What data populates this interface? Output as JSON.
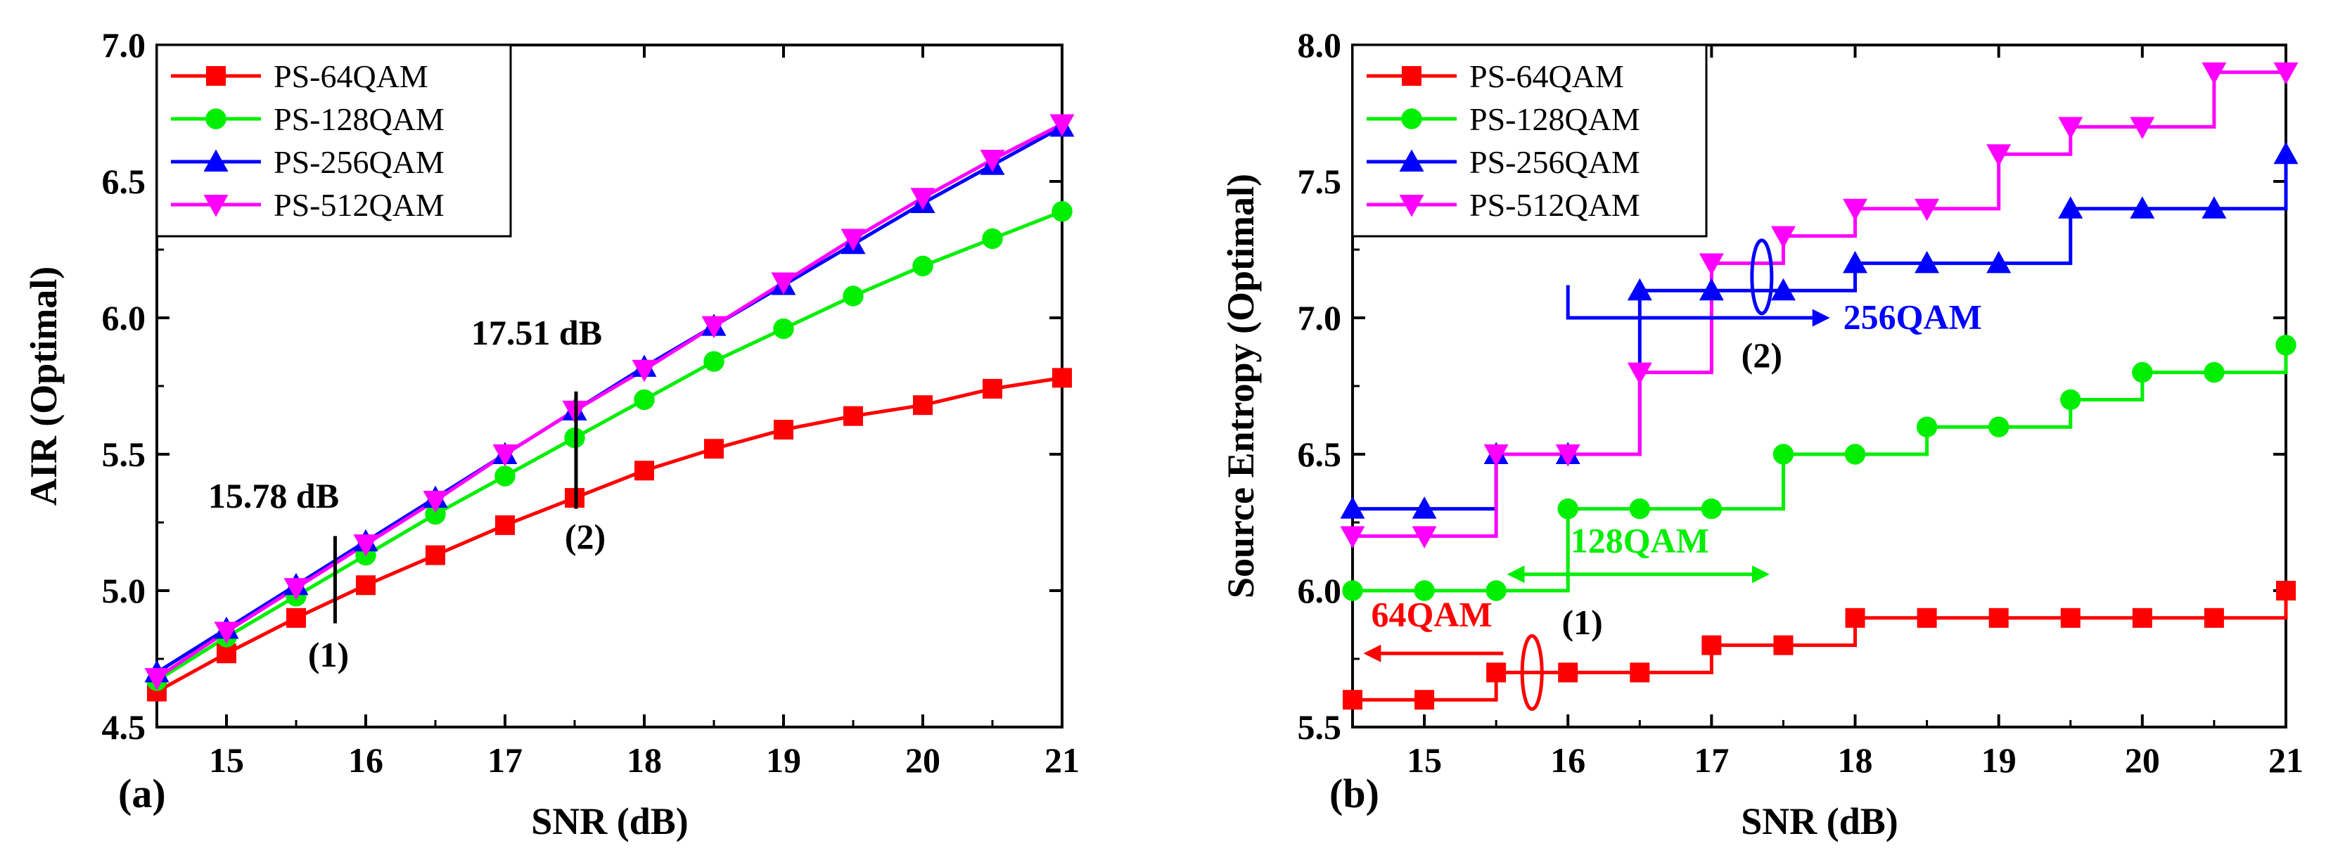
{
  "figure": {
    "colors": {
      "PS-64QAM": "#ff0000",
      "PS-128QAM": "#00ee00",
      "PS-256QAM": "#0000ff",
      "PS-512QAM": "#ff00ff",
      "axis": "#000000"
    }
  },
  "chart_data": [
    {
      "type": "line",
      "panel_label": "(a)",
      "xlabel": "SNR (dB)",
      "ylabel": "AIR (Optimal)",
      "xlim": [
        14.5,
        21
      ],
      "ylim": [
        4.5,
        7.0
      ],
      "xticks": [
        "15",
        "16",
        "17",
        "18",
        "19",
        "20",
        "21"
      ],
      "yticks": [
        "4.5",
        "5.0",
        "5.5",
        "6.0",
        "6.5",
        "7.0"
      ],
      "legend_position": "top-left",
      "x": [
        14.5,
        15,
        15.5,
        16,
        16.5,
        17,
        17.5,
        18,
        18.5,
        19,
        19.5,
        20,
        20.5,
        21
      ],
      "series": [
        {
          "name": "PS-64QAM",
          "marker": "square",
          "values": [
            4.63,
            4.77,
            4.9,
            5.02,
            5.13,
            5.24,
            5.34,
            5.44,
            5.52,
            5.59,
            5.64,
            5.68,
            5.74,
            5.78
          ]
        },
        {
          "name": "PS-128QAM",
          "marker": "circle",
          "values": [
            4.67,
            4.83,
            4.98,
            5.13,
            5.28,
            5.42,
            5.56,
            5.7,
            5.84,
            5.96,
            6.08,
            6.19,
            6.29,
            6.39
          ]
        },
        {
          "name": "PS-256QAM",
          "marker": "triangle-up",
          "values": [
            4.7,
            4.86,
            5.02,
            5.18,
            5.34,
            5.5,
            5.66,
            5.82,
            5.97,
            6.12,
            6.27,
            6.42,
            6.56,
            6.7
          ]
        },
        {
          "name": "PS-512QAM",
          "marker": "triangle-down",
          "values": [
            4.68,
            4.85,
            5.01,
            5.17,
            5.33,
            5.5,
            5.66,
            5.81,
            5.97,
            6.13,
            6.29,
            6.44,
            6.58,
            6.71
          ]
        }
      ],
      "annotations": {
        "a1_value": "15.78 dB",
        "a1_tag": "(1)",
        "a1_x": 15.78,
        "a1_range": [
          4.88,
          5.2
        ],
        "a2_value": "17.51 dB",
        "a2_tag": "(2)",
        "a2_x": 17.51,
        "a2_range": [
          5.3,
          5.73
        ]
      }
    },
    {
      "type": "line",
      "panel_label": "(b)",
      "xlabel": "SNR (dB)",
      "ylabel": "Source Entropy (Optimal)",
      "xlim": [
        14.5,
        21
      ],
      "ylim": [
        5.5,
        8.0
      ],
      "xticks": [
        "15",
        "16",
        "17",
        "18",
        "19",
        "20",
        "21"
      ],
      "yticks": [
        "5.5",
        "6.0",
        "6.5",
        "7.0",
        "7.5",
        "8.0"
      ],
      "legend_position": "top-left",
      "step": true,
      "x": [
        14.5,
        15,
        15.5,
        16,
        16.5,
        17,
        17.5,
        18,
        18.5,
        19,
        19.5,
        20,
        20.5,
        21
      ],
      "series": [
        {
          "name": "PS-64QAM",
          "marker": "square",
          "values": [
            5.6,
            5.6,
            5.7,
            5.7,
            5.7,
            5.8,
            5.8,
            5.9,
            5.9,
            5.9,
            5.9,
            5.9,
            5.9,
            6.0
          ]
        },
        {
          "name": "PS-128QAM",
          "marker": "circle",
          "values": [
            6.0,
            6.0,
            6.0,
            6.3,
            6.3,
            6.3,
            6.5,
            6.5,
            6.6,
            6.6,
            6.7,
            6.8,
            6.8,
            6.9
          ]
        },
        {
          "name": "PS-256QAM",
          "marker": "triangle-up",
          "values": [
            6.3,
            6.3,
            6.5,
            6.5,
            7.1,
            7.1,
            7.1,
            7.2,
            7.2,
            7.2,
            7.4,
            7.4,
            7.4,
            7.6
          ]
        },
        {
          "name": "PS-512QAM",
          "marker": "triangle-down",
          "values": [
            6.2,
            6.2,
            6.5,
            6.5,
            6.8,
            7.2,
            7.3,
            7.4,
            7.4,
            7.6,
            7.7,
            7.7,
            7.9,
            7.9
          ]
        }
      ],
      "annotations": {
        "qam64_label": "64QAM",
        "qam64_arrow": [
          15.55,
          14.6
        ],
        "qam64_y": 5.77,
        "qam64_label_pos": [
          14.63,
          5.87
        ],
        "qam128_label": "128QAM",
        "qam128_arrow": [
          15.6,
          17.38
        ],
        "qam128_y": 6.06,
        "qam128_label_pos": [
          16.5,
          6.14
        ],
        "qam256_label": "256QAM",
        "qam256_arrow": [
          16.0,
          17.8
        ],
        "qam256_y": 7.0,
        "qam256_label_pos": [
          18.4,
          6.96
        ],
        "qam256_bracket_y": 7.12,
        "tag1": "(1)",
        "tag1_ellipse": [
          15.75,
          5.7
        ],
        "tag1_pos": [
          16.1,
          5.84
        ],
        "tag2": "(2)",
        "tag2_ellipse": [
          17.35,
          7.15
        ],
        "tag2_pos": [
          17.35,
          6.82
        ]
      }
    }
  ]
}
